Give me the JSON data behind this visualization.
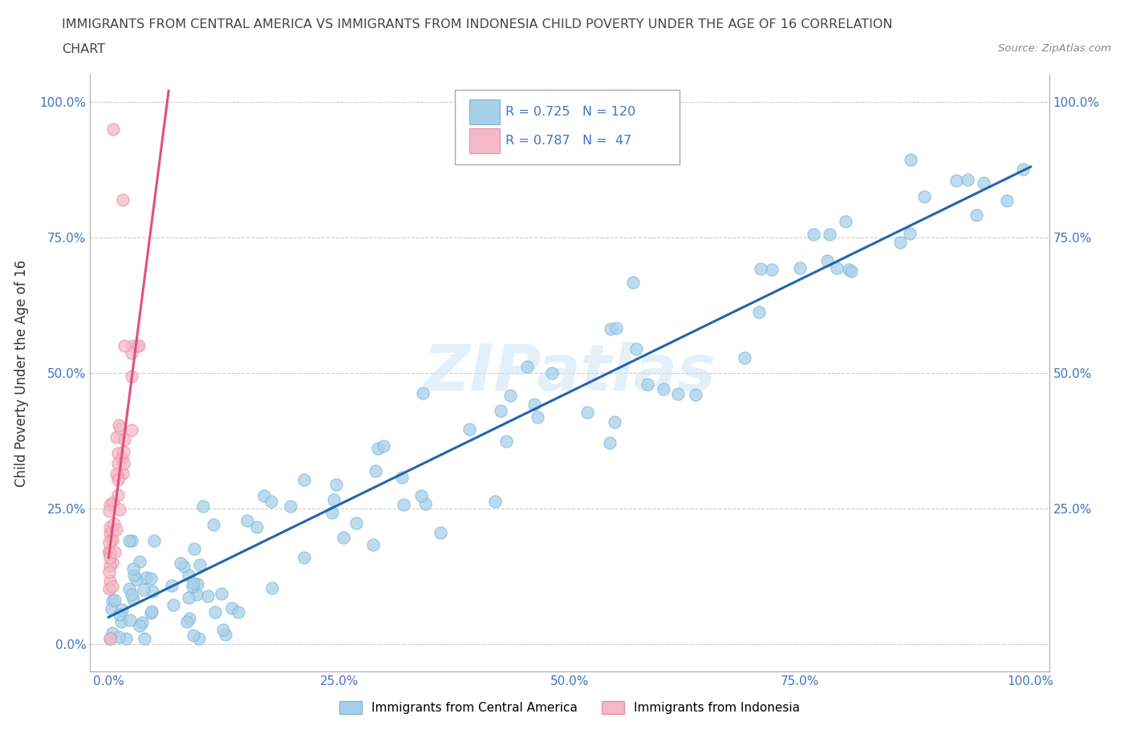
{
  "title_line1": "IMMIGRANTS FROM CENTRAL AMERICA VS IMMIGRANTS FROM INDONESIA CHILD POVERTY UNDER THE AGE OF 16 CORRELATION",
  "title_line2": "CHART",
  "source": "Source: ZipAtlas.com",
  "ylabel": "Child Poverty Under the Age of 16",
  "xlim": [
    -0.02,
    1.02
  ],
  "ylim": [
    -0.05,
    1.05
  ],
  "xticks": [
    0.0,
    0.25,
    0.5,
    0.75,
    1.0
  ],
  "yticks": [
    0.0,
    0.25,
    0.5,
    0.75,
    1.0
  ],
  "xticklabels": [
    "0.0%",
    "25.0%",
    "50.0%",
    "75.0%",
    "100.0%"
  ],
  "yticklabels": [
    "0.0%",
    "25.0%",
    "50.0%",
    "75.0%",
    "100.0%"
  ],
  "right_yticklabels": [
    "25.0%",
    "50.0%",
    "75.0%",
    "100.0%"
  ],
  "blue_color": "#a8d0e8",
  "blue_edge_color": "#7ab8d8",
  "pink_color": "#f5b8c8",
  "pink_edge_color": "#e890a8",
  "blue_line_color": "#2166ac",
  "pink_line_color": "#e0507a",
  "R_blue": 0.725,
  "N_blue": 120,
  "R_pink": 0.787,
  "N_pink": 47,
  "watermark": "ZIPatlas",
  "legend_label_blue": "Immigrants from Central America",
  "legend_label_pink": "Immigrants from Indonesia",
  "blue_line_x0": 0.0,
  "blue_line_y0": 0.05,
  "blue_line_x1": 1.0,
  "blue_line_y1": 0.88,
  "pink_line_x0": 0.0,
  "pink_line_y0": 0.16,
  "pink_line_x1": 0.065,
  "pink_line_y1": 1.02
}
